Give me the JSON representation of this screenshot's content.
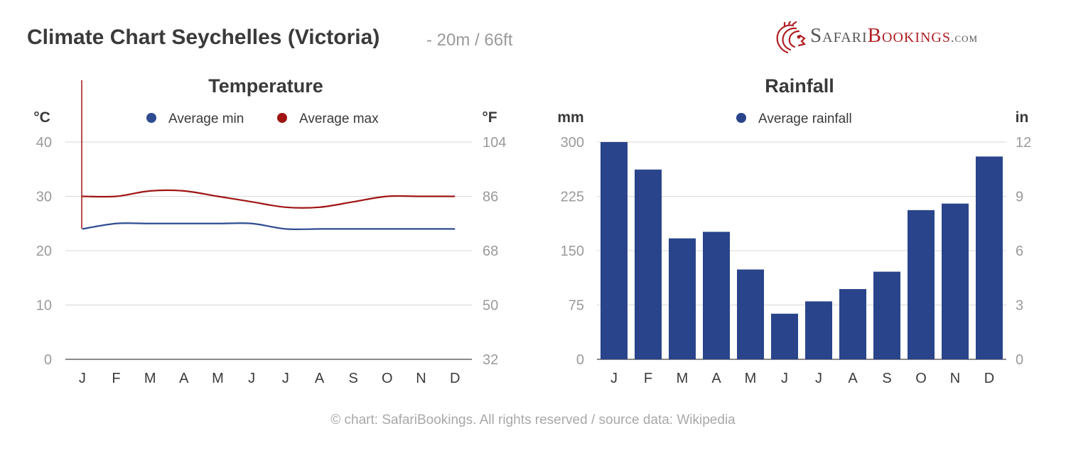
{
  "header": {
    "title": "Climate Chart Seychelles (Victoria)",
    "subtitle": "- 20m / 66ft"
  },
  "logo": {
    "brand_part1": "Safari",
    "brand_part2": "Bookings",
    "brand_suffix": ".com",
    "icon": "lion-icon"
  },
  "footer": "© chart: SafariBookings. All rights reserved / source data: Wikipedia",
  "colors": {
    "min": "#2e4c91",
    "max": "#a01414",
    "bar": "#29448a",
    "grid": "#d8d8d8",
    "tick": "#9a9a9a",
    "text": "#3a3a3a"
  },
  "chart_data": [
    {
      "type": "line",
      "title": "Temperature",
      "left_unit": "°C",
      "right_unit": "°F",
      "categories": [
        "J",
        "F",
        "M",
        "A",
        "M",
        "J",
        "J",
        "A",
        "S",
        "O",
        "N",
        "D"
      ],
      "ylim": [
        0,
        40
      ],
      "left_ticks": [
        "40",
        "30",
        "20",
        "10",
        "0"
      ],
      "right_ticks": [
        "104",
        "86",
        "68",
        "50",
        "32"
      ],
      "grid": true,
      "legend_position": "top",
      "series": [
        {
          "name": "Average min",
          "values": [
            24,
            25,
            25,
            25,
            25,
            25,
            24,
            24,
            24,
            24,
            24,
            24
          ]
        },
        {
          "name": "Average max",
          "values": [
            30,
            30,
            31,
            31,
            30,
            29,
            28,
            28,
            29,
            30,
            30,
            30
          ]
        }
      ]
    },
    {
      "type": "bar",
      "title": "Rainfall",
      "left_unit": "mm",
      "right_unit": "in",
      "categories": [
        "J",
        "F",
        "M",
        "A",
        "M",
        "J",
        "J",
        "A",
        "S",
        "O",
        "N",
        "D"
      ],
      "ylim": [
        0,
        300
      ],
      "left_ticks": [
        "300",
        "225",
        "150",
        "75",
        "0"
      ],
      "right_ticks": [
        "12",
        "9",
        "6",
        "3",
        "0"
      ],
      "grid": true,
      "legend_position": "top",
      "series": [
        {
          "name": "Average rainfall",
          "values": [
            300,
            262,
            167,
            176,
            124,
            63,
            80,
            97,
            121,
            206,
            215,
            280
          ]
        }
      ]
    }
  ]
}
